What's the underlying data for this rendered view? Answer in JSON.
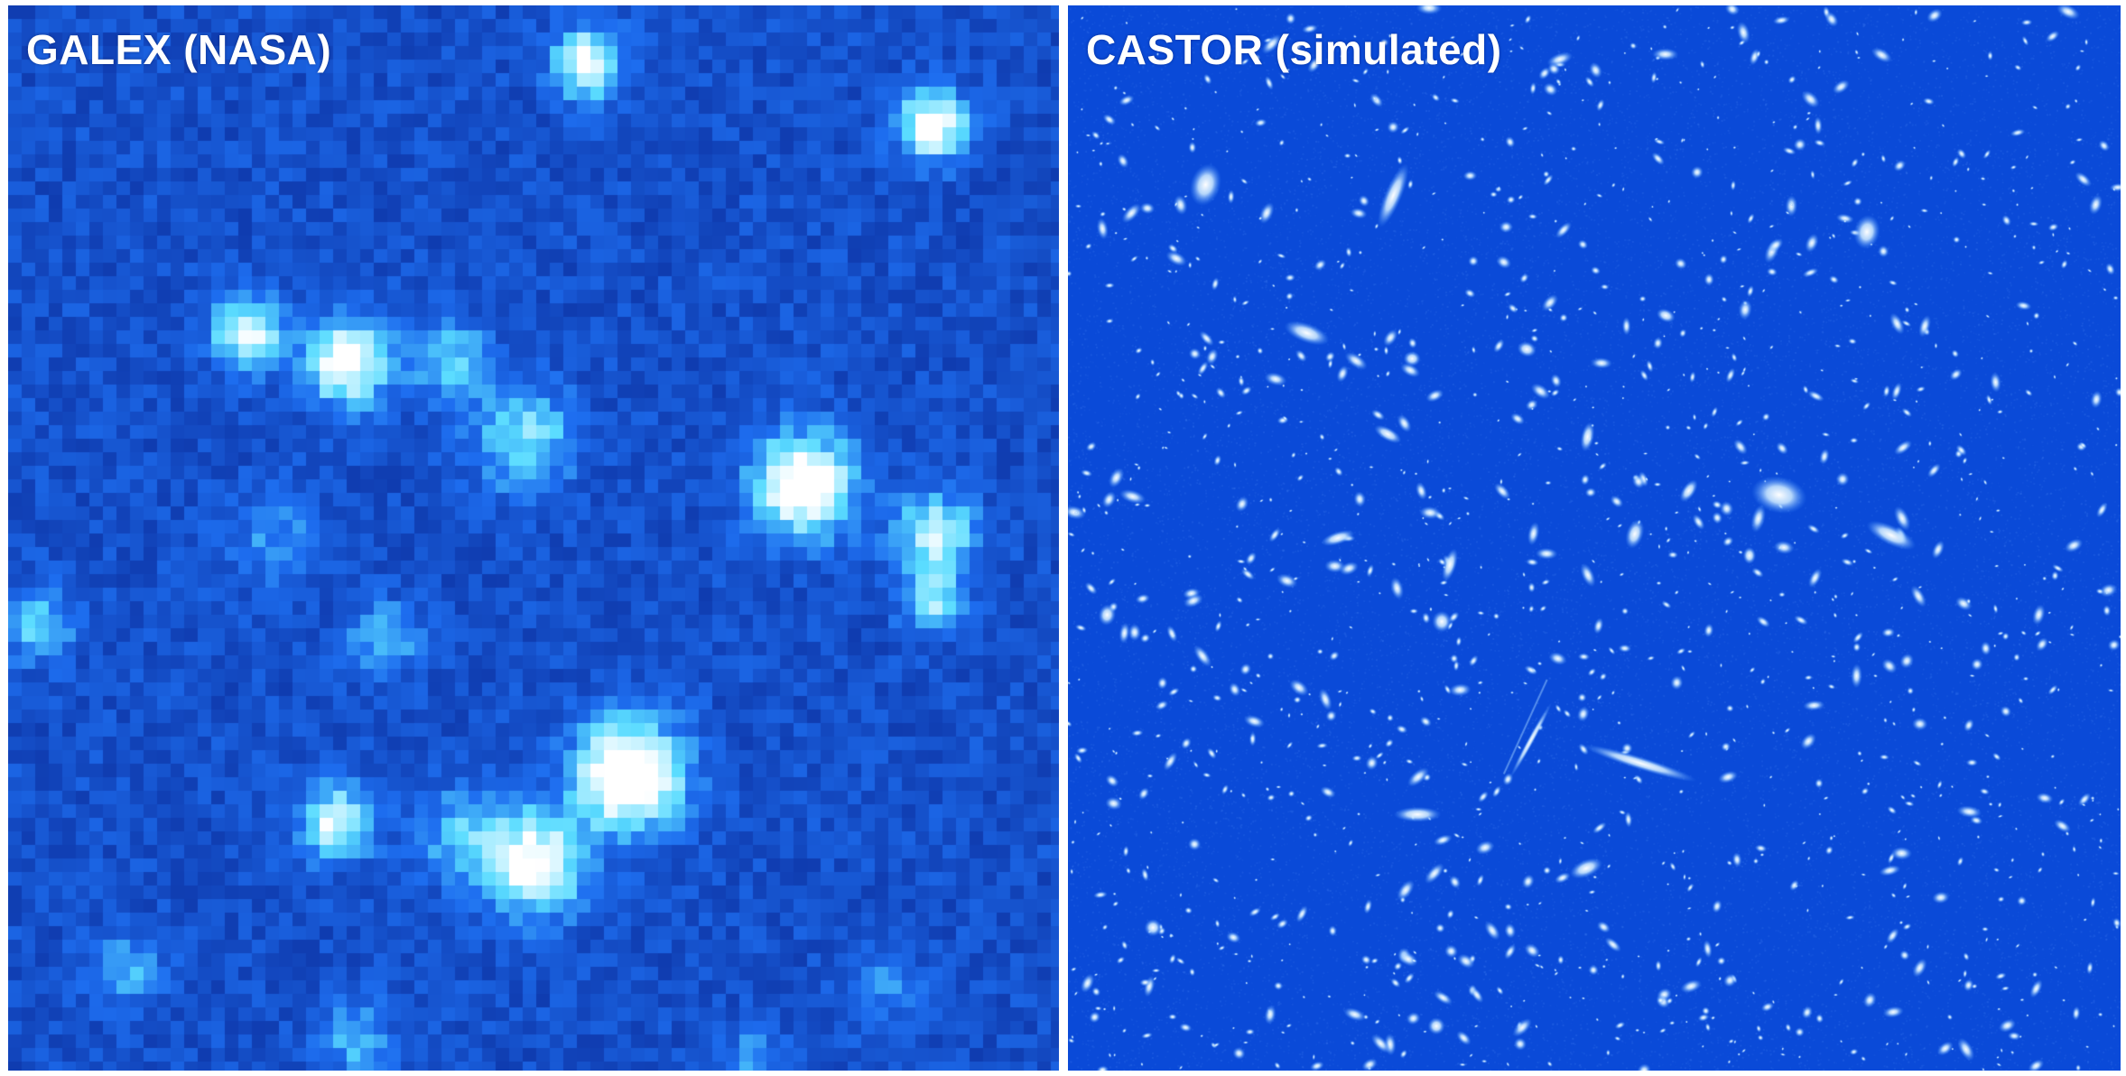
{
  "left_panel": {
    "label": "GALEX (NASA)",
    "background_color": "#1a5fe0",
    "source_color": "#ffffff"
  },
  "right_panel": {
    "label": "CASTOR (simulated)",
    "background_color": "#0a4ad8",
    "source_color": "#ffffff"
  }
}
